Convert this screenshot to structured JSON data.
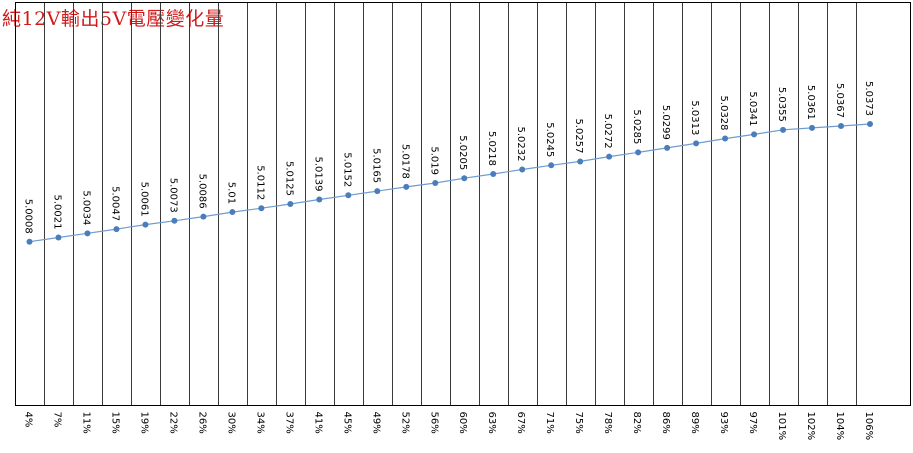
{
  "chart_data": {
    "type": "line",
    "title": "純12V輸出5V電壓變化量",
    "xlabel": "",
    "ylabel": "",
    "categories": [
      "4%",
      "7%",
      "11%",
      "15%",
      "19%",
      "22%",
      "26%",
      "30%",
      "34%",
      "37%",
      "41%",
      "45%",
      "49%",
      "52%",
      "56%",
      "60%",
      "63%",
      "67%",
      "71%",
      "75%",
      "78%",
      "82%",
      "86%",
      "89%",
      "93%",
      "97%",
      "101%",
      "102%",
      "104%",
      "106%"
    ],
    "series": [
      {
        "values": [
          5.0008,
          5.0021,
          5.0034,
          5.0047,
          5.0061,
          5.0073,
          5.0086,
          5.01,
          5.0112,
          5.0125,
          5.0139,
          5.0152,
          5.0165,
          5.0178,
          5.019,
          5.0205,
          5.0218,
          5.0232,
          5.0245,
          5.0257,
          5.0272,
          5.0285,
          5.0299,
          5.0313,
          5.0328,
          5.0341,
          5.0355,
          5.0361,
          5.0367,
          5.0373
        ],
        "labels": [
          "5.0008",
          "5.0021",
          "5.0034",
          "5.0047",
          "5.0061",
          "5.0073",
          "5.0086",
          "5.01",
          "5.0112",
          "5.0125",
          "5.0139",
          "5.0152",
          "5.0165",
          "5.0178",
          "5.019",
          "5.0205",
          "5.0218",
          "5.0232",
          "5.0245",
          "5.0257",
          "5.0272",
          "5.0285",
          "5.0299",
          "5.0313",
          "5.0328",
          "5.0341",
          "5.0355",
          "5.0361",
          "5.0367",
          "5.0373"
        ],
        "color": "#4a7ebb"
      }
    ],
    "ylim": [
      4.95,
      5.075
    ],
    "grid": "vertical",
    "legend": "none",
    "colors": {
      "title": "#d11a1a",
      "line": "#6f9bd1",
      "marker": "#4a7ebb",
      "grid": "#3a3a3a"
    }
  }
}
